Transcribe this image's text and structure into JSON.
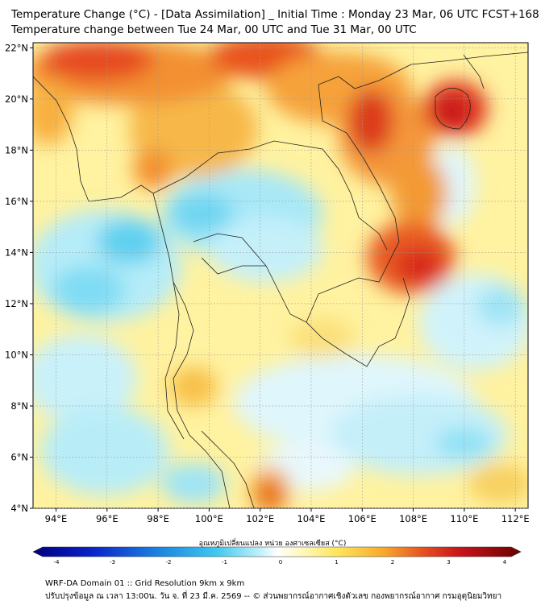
{
  "header": {
    "title_line1": "Temperature Change (°C) - [Data Assimilation] _ Initial Time : Monday 23 Mar, 06 UTC FCST+168",
    "title_line2": "Temperature change between Tue 24 Mar, 00 UTC and Tue 31 Mar, 00 UTC"
  },
  "map": {
    "lat_labels": [
      "22°N",
      "20°N",
      "18°N",
      "16°N",
      "14°N",
      "12°N",
      "10°N",
      "8°N",
      "6°N",
      "4°N"
    ],
    "lon_labels": [
      "94°E",
      "96°E",
      "98°E",
      "100°E",
      "102°E",
      "104°E",
      "106°E",
      "108°E",
      "110°E",
      "112°E"
    ],
    "lat_values": [
      22,
      20,
      18,
      16,
      14,
      12,
      10,
      8,
      6,
      4
    ],
    "lon_values": [
      94,
      96,
      98,
      100,
      102,
      104,
      106,
      108,
      110,
      112
    ],
    "extent": {
      "lon_min": 93.1,
      "lon_max": 112.5,
      "lat_min": 4,
      "lat_max": 22.2
    }
  },
  "colorbar": {
    "label": "อุณหภูมิเปลี่ยนแปลง หน่วย องศาเซลเซียส (°C)",
    "ticks": [
      "-4",
      "-3",
      "-2",
      "-1",
      "0",
      "1",
      "2",
      "3",
      "4"
    ],
    "tick_values": [
      -4,
      -3,
      -2,
      -1,
      0,
      1,
      2,
      3,
      4
    ],
    "colors": {
      "min": "#00007f",
      "cold": "#2aa7e6",
      "cyan": "#7fe0f5",
      "neutral": "#ffffff",
      "warm": "#ffe55a",
      "orange": "#f59a1a",
      "hot": "#d8141a",
      "max": "#6a0000"
    }
  },
  "footer": {
    "line1": "WRF-DA Domain 01 :: Grid Resolution 9km x 9km",
    "line2": "ปรับปรุงข้อมูล ณ เวลา 13:00น. วัน จ. ที่ 23 มี.ค. 2569 -- © ส่วนพยากรณ์อากาศเชิงตัวเลข กองพยากรณ์อากาศ กรมอุตุนิยมวิทยา"
  }
}
